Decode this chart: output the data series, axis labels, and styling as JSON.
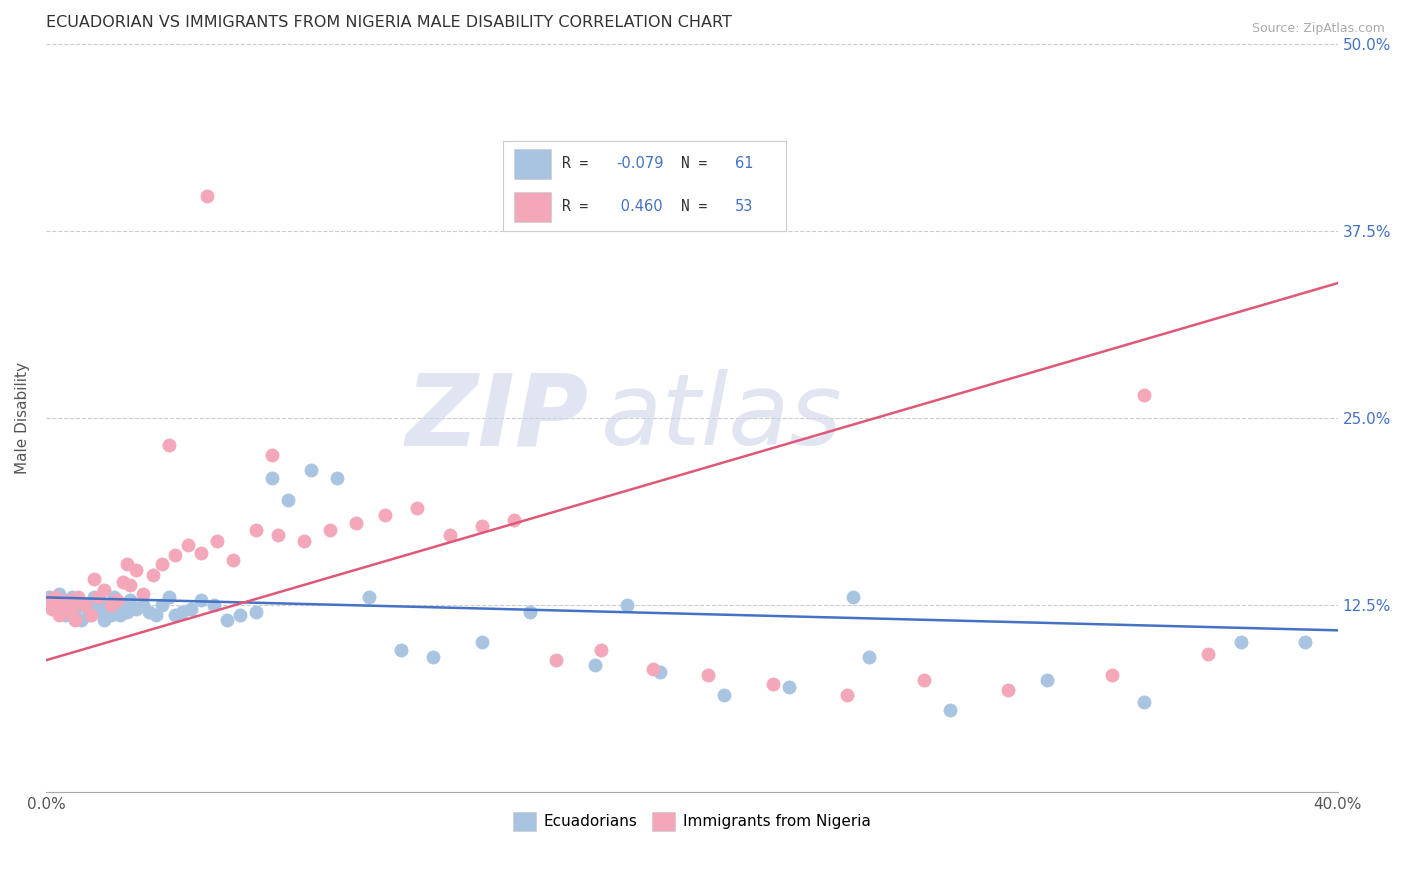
{
  "title": "ECUADORIAN VS IMMIGRANTS FROM NIGERIA MALE DISABILITY CORRELATION CHART",
  "source": "Source: ZipAtlas.com",
  "ylabel": "Male Disability",
  "x_min": 0.0,
  "x_max": 0.4,
  "y_min": 0.0,
  "y_max": 0.5,
  "x_ticks": [
    0.0,
    0.08,
    0.16,
    0.24,
    0.32,
    0.4
  ],
  "x_tick_labels": [
    "0.0%",
    "",
    "",
    "",
    "",
    "40.0%"
  ],
  "y_ticks": [
    0.0,
    0.125,
    0.25,
    0.375,
    0.5
  ],
  "y_tick_labels_right": [
    "",
    "12.5%",
    "25.0%",
    "37.5%",
    "50.0%"
  ],
  "ecuadorians_color": "#a8c4e0",
  "nigeria_color": "#f4a7b9",
  "line_blue": "#4472c4",
  "line_pink": "#e05878",
  "watermark": "ZIPatlas",
  "watermark_color": "#cdd5e8",
  "legend_labels": [
    "Ecuadorians",
    "Immigrants from Nigeria"
  ],
  "ecuadorians_x": [
    0.001,
    0.002,
    0.003,
    0.004,
    0.005,
    0.006,
    0.007,
    0.008,
    0.009,
    0.01,
    0.011,
    0.012,
    0.013,
    0.014,
    0.015,
    0.016,
    0.017,
    0.018,
    0.019,
    0.02,
    0.021,
    0.022,
    0.023,
    0.024,
    0.025,
    0.026,
    0.028,
    0.03,
    0.032,
    0.034,
    0.036,
    0.038,
    0.04,
    0.042,
    0.045,
    0.048,
    0.052,
    0.056,
    0.06,
    0.065,
    0.07,
    0.075,
    0.082,
    0.09,
    0.1,
    0.11,
    0.12,
    0.135,
    0.15,
    0.17,
    0.19,
    0.21,
    0.23,
    0.255,
    0.28,
    0.31,
    0.34,
    0.37,
    0.39,
    0.25,
    0.18
  ],
  "ecuadorians_y": [
    0.13,
    0.128,
    0.125,
    0.132,
    0.12,
    0.118,
    0.126,
    0.13,
    0.122,
    0.128,
    0.115,
    0.125,
    0.118,
    0.122,
    0.13,
    0.128,
    0.12,
    0.115,
    0.125,
    0.118,
    0.13,
    0.122,
    0.118,
    0.125,
    0.12,
    0.128,
    0.122,
    0.125,
    0.12,
    0.118,
    0.125,
    0.13,
    0.118,
    0.12,
    0.122,
    0.128,
    0.125,
    0.115,
    0.118,
    0.12,
    0.21,
    0.195,
    0.215,
    0.21,
    0.13,
    0.095,
    0.09,
    0.1,
    0.12,
    0.085,
    0.08,
    0.065,
    0.07,
    0.09,
    0.055,
    0.075,
    0.06,
    0.1,
    0.1,
    0.13,
    0.125
  ],
  "nigeria_x": [
    0.001,
    0.002,
    0.003,
    0.004,
    0.005,
    0.006,
    0.007,
    0.008,
    0.009,
    0.01,
    0.012,
    0.014,
    0.016,
    0.018,
    0.02,
    0.022,
    0.024,
    0.026,
    0.028,
    0.03,
    0.033,
    0.036,
    0.04,
    0.044,
    0.048,
    0.053,
    0.058,
    0.065,
    0.072,
    0.08,
    0.088,
    0.096,
    0.105,
    0.115,
    0.125,
    0.135,
    0.145,
    0.158,
    0.172,
    0.188,
    0.205,
    0.225,
    0.248,
    0.272,
    0.298,
    0.07,
    0.05,
    0.038,
    0.025,
    0.015,
    0.34,
    0.36,
    0.33
  ],
  "nigeria_y": [
    0.128,
    0.122,
    0.13,
    0.118,
    0.125,
    0.12,
    0.128,
    0.122,
    0.115,
    0.13,
    0.125,
    0.118,
    0.13,
    0.135,
    0.125,
    0.128,
    0.14,
    0.138,
    0.148,
    0.132,
    0.145,
    0.152,
    0.158,
    0.165,
    0.16,
    0.168,
    0.155,
    0.175,
    0.172,
    0.168,
    0.175,
    0.18,
    0.185,
    0.19,
    0.172,
    0.178,
    0.182,
    0.088,
    0.095,
    0.082,
    0.078,
    0.072,
    0.065,
    0.075,
    0.068,
    0.225,
    0.398,
    0.232,
    0.152,
    0.142,
    0.265,
    0.092,
    0.078
  ],
  "blue_line_x": [
    0.0,
    0.4
  ],
  "blue_line_y": [
    0.13,
    0.108
  ],
  "pink_line_x": [
    0.0,
    0.4
  ],
  "pink_line_y": [
    0.088,
    0.34
  ]
}
